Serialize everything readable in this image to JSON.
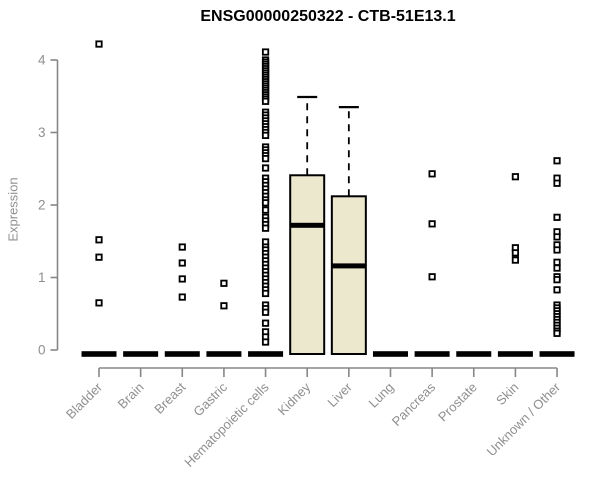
{
  "chart_data": {
    "type": "boxplot",
    "title": "ENSG00000250322 - CTB-51E13.1",
    "ylabel": "Expression",
    "xlabel": "",
    "ylim": [
      0,
      4
    ],
    "yticks": [
      0,
      1,
      2,
      3,
      4
    ],
    "grid": false,
    "legend": "none",
    "categories": [
      "Bladder",
      "Brain",
      "Breast",
      "Gastric",
      "Hematopoietic cells",
      "Kidney",
      "Liver",
      "Lung",
      "Pancreas",
      "Prostate",
      "Skin",
      "Unknown / Other"
    ],
    "boxes": [
      {
        "category": "Bladder",
        "q1": 0,
        "median": 0,
        "q3": 0,
        "whisker_low": 0,
        "whisker_high": 0,
        "outliers": [
          4.22,
          1.52,
          1.28,
          0.65
        ]
      },
      {
        "category": "Brain",
        "q1": 0,
        "median": 0,
        "q3": 0,
        "whisker_low": 0,
        "whisker_high": 0,
        "outliers": []
      },
      {
        "category": "Breast",
        "q1": 0,
        "median": 0,
        "q3": 0,
        "whisker_low": 0,
        "whisker_high": 0,
        "outliers": [
          1.42,
          1.2,
          0.98,
          0.73
        ]
      },
      {
        "category": "Gastric",
        "q1": 0,
        "median": 0,
        "q3": 0,
        "whisker_low": 0,
        "whisker_high": 0,
        "outliers": [
          0.92,
          0.61
        ]
      },
      {
        "category": "Hematopoietic cells",
        "q1": 0,
        "median": 0,
        "q3": 0,
        "whisker_low": 0,
        "whisker_high": 0,
        "outliers": [
          4.11,
          4.0,
          3.97,
          3.94,
          3.91,
          3.88,
          3.85,
          3.82,
          3.79,
          3.76,
          3.73,
          3.7,
          3.67,
          3.64,
          3.61,
          3.58,
          3.55,
          3.52,
          3.49,
          3.46,
          3.43,
          3.28,
          3.24,
          3.2,
          3.16,
          3.12,
          3.08,
          3.04,
          3.0,
          2.96,
          2.8,
          2.76,
          2.72,
          2.68,
          2.64,
          2.51,
          2.37,
          2.32,
          2.27,
          2.22,
          2.17,
          2.12,
          2.07,
          2.03,
          1.93,
          1.83,
          1.78,
          1.73,
          1.68,
          1.49,
          1.42,
          1.38,
          1.33,
          1.28,
          1.23,
          1.18,
          1.13,
          1.08,
          1.03,
          0.98,
          0.93,
          0.88,
          0.83,
          0.78,
          0.62,
          0.57,
          0.52,
          0.37,
          0.25,
          0.18,
          0.11
        ]
      },
      {
        "category": "Kidney",
        "q1": 0,
        "median": 1.72,
        "q3": 2.41,
        "whisker_low": 0,
        "whisker_high": 3.49,
        "outliers": []
      },
      {
        "category": "Liver",
        "q1": 0,
        "median": 1.16,
        "q3": 2.12,
        "whisker_low": 0,
        "whisker_high": 3.35,
        "outliers": []
      },
      {
        "category": "Lung",
        "q1": 0,
        "median": 0,
        "q3": 0,
        "whisker_low": 0,
        "whisker_high": 0,
        "outliers": []
      },
      {
        "category": "Pancreas",
        "q1": 0,
        "median": 0,
        "q3": 0,
        "whisker_low": 0,
        "whisker_high": 0,
        "outliers": [
          2.43,
          1.74,
          1.01
        ]
      },
      {
        "category": "Prostate",
        "q1": 0,
        "median": 0,
        "q3": 0,
        "whisker_low": 0,
        "whisker_high": 0,
        "outliers": []
      },
      {
        "category": "Skin",
        "q1": 0,
        "median": 0,
        "q3": 0,
        "whisker_low": 0,
        "whisker_high": 0,
        "outliers": [
          2.39,
          1.41,
          1.34,
          1.24
        ]
      },
      {
        "category": "Unknown / Other",
        "q1": 0,
        "median": 0,
        "q3": 0,
        "whisker_low": 0,
        "whisker_high": 0,
        "outliers": [
          2.61,
          2.37,
          2.3,
          1.83,
          1.63,
          1.56,
          1.45,
          1.38,
          1.21,
          1.13,
          1.01,
          0.97,
          0.83,
          0.62,
          0.58,
          0.54,
          0.5,
          0.46,
          0.42,
          0.38,
          0.34,
          0.3,
          0.26,
          0.23
        ]
      }
    ],
    "colors": {
      "box_fill": "#ECE8CE",
      "box_border": "#000000",
      "median": "#000000",
      "whisker": "#000000",
      "outlier_stroke": "#000000",
      "outlier_fill": "#ffffff",
      "axis_line": "#878787",
      "axis_text": "#8f8f8f",
      "title_text": "#000000",
      "background": "#ffffff"
    }
  }
}
